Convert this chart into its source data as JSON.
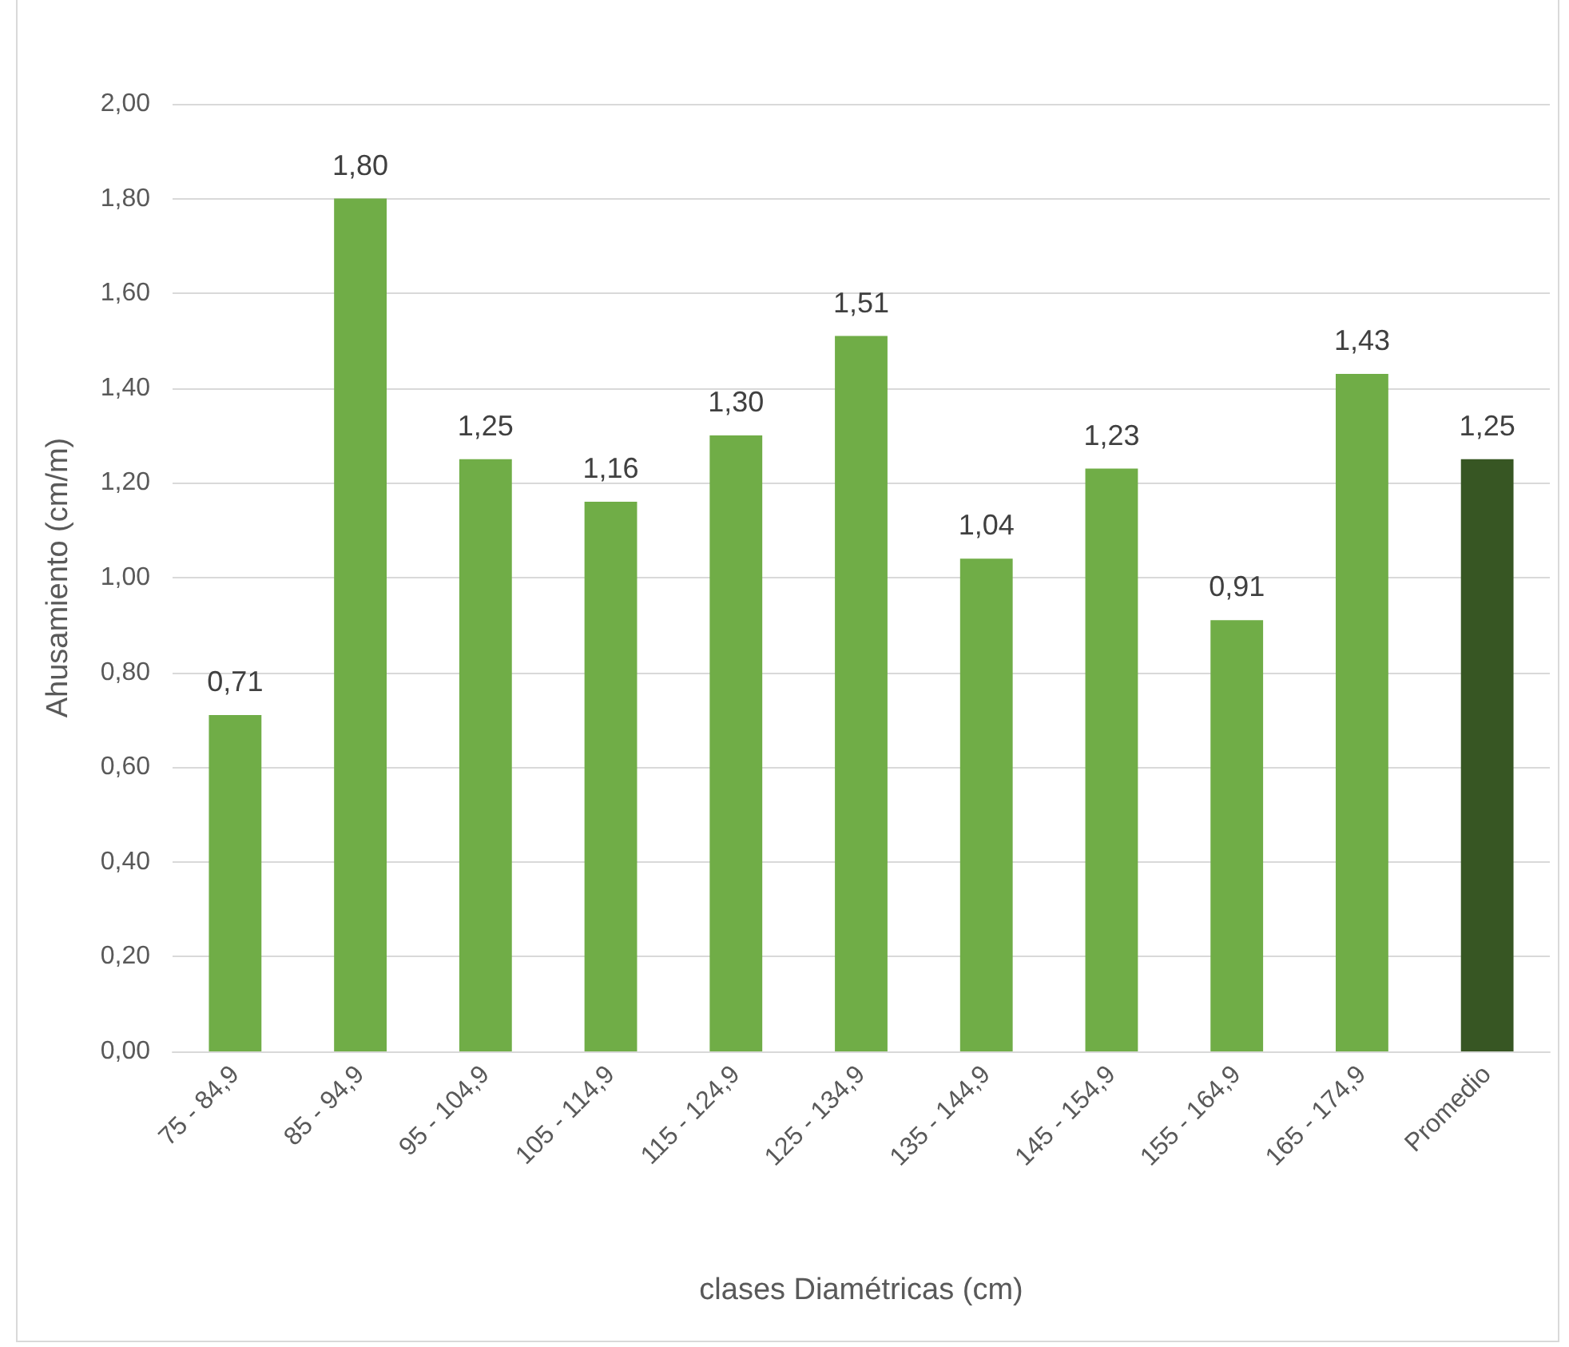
{
  "chart_data": {
    "type": "bar",
    "xlabel": "clases Diamétricas (cm)",
    "ylabel": "Ahusamiento (cm/m)",
    "categories": [
      "75 - 84,9",
      "85 - 94,9",
      "95 - 104,9",
      "105 - 114,9",
      "115 - 124,9",
      "125 - 134,9",
      "135 - 144,9",
      "145 - 154,9",
      "155 - 164,9",
      "165 - 174,9",
      "Promedio"
    ],
    "values": [
      0.71,
      1.8,
      1.25,
      1.16,
      1.3,
      1.51,
      1.04,
      1.23,
      0.91,
      1.43,
      1.25
    ],
    "colors": [
      "#70ad47",
      "#70ad47",
      "#70ad47",
      "#70ad47",
      "#70ad47",
      "#70ad47",
      "#70ad47",
      "#70ad47",
      "#70ad47",
      "#70ad47",
      "#375623"
    ],
    "value_labels": [
      "0,71",
      "1,80",
      "1,25",
      "1,16",
      "1,30",
      "1,51",
      "1,04",
      "1,23",
      "0,91",
      "1,43",
      "1,25"
    ],
    "ylim": [
      0,
      2
    ],
    "yticks": [
      {
        "value": 0,
        "label": "0,00"
      },
      {
        "value": 0.2,
        "label": "0,20"
      },
      {
        "value": 0.4,
        "label": "0,40"
      },
      {
        "value": 0.6,
        "label": "0,60"
      },
      {
        "value": 0.8,
        "label": "0,80"
      },
      {
        "value": 1.0,
        "label": "1,00"
      },
      {
        "value": 1.2,
        "label": "1,20"
      },
      {
        "value": 1.4,
        "label": "1,40"
      },
      {
        "value": 1.6,
        "label": "1,60"
      },
      {
        "value": 1.8,
        "label": "1,80"
      },
      {
        "value": 2.0,
        "label": "2,00"
      }
    ],
    "grid": "y"
  }
}
